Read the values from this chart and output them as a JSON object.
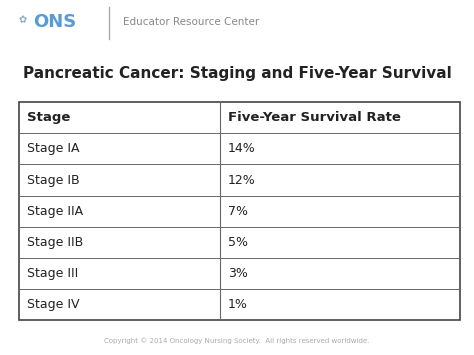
{
  "title": "Pancreatic Cancer: Staging and Five-Year Survival",
  "title_fontsize": 11,
  "title_fontweight": "bold",
  "header": [
    "Stage",
    "Five-Year Survival Rate"
  ],
  "rows": [
    [
      "Stage IA",
      "14%"
    ],
    [
      "Stage IB",
      "12%"
    ],
    [
      "Stage IIA",
      "7%"
    ],
    [
      "Stage IIB",
      "5%"
    ],
    [
      "Stage III",
      "3%"
    ],
    [
      "Stage IV",
      "1%"
    ]
  ],
  "header_fontsize": 9.5,
  "row_fontsize": 9,
  "header_fontweight": "bold",
  "row_fontweight": "normal",
  "bg_color": "#ffffff",
  "table_border_color": "#444444",
  "table_line_color": "#666666",
  "text_color": "#222222",
  "footer_text": "Copyright © 2014 Oncology Nursing Society.  All rights reserved worldwide.",
  "footer_fontsize": 5.0,
  "footer_color": "#aaaaaa",
  "header_bg_color": "#f5f5f5",
  "ons_text_color": "#5b9bd5",
  "ons_divider_color": "#aaaaaa",
  "separator_color": "#b0b4bc",
  "col_split": 0.455
}
